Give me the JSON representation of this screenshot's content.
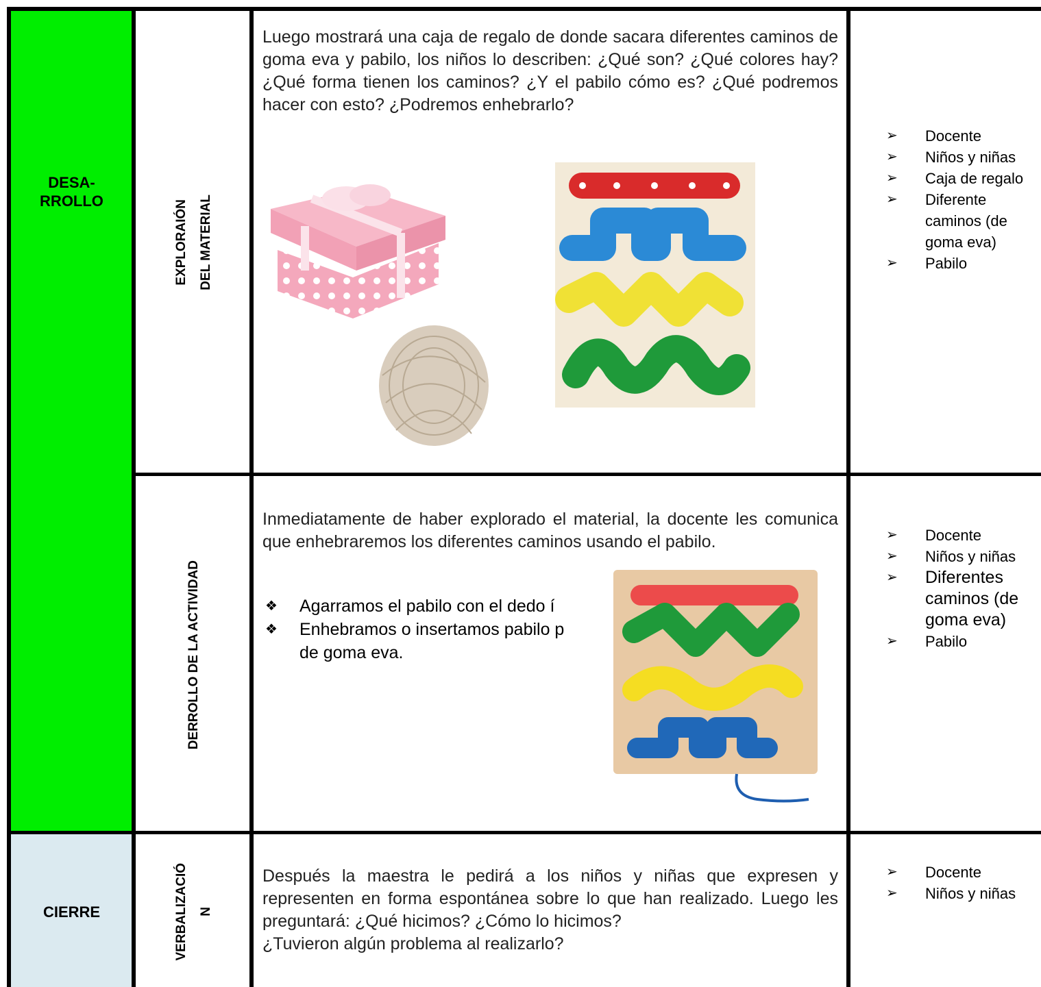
{
  "stages": [
    {
      "lines": [
        "DESA-",
        "RROLLO"
      ]
    },
    {
      "lines": [
        "CIERRE"
      ]
    }
  ],
  "rows": [
    {
      "phase": [
        "EXPLORAIÓN",
        "DEL MATERIAL"
      ],
      "paragraphs": [
        "Luego mostrará una caja de regalo de donde sacara diferentes caminos de goma eva y pabilo, los niños lo describen: ¿Qué son? ¿Qué colores hay? ¿Qué forma tienen los caminos? ¿Y el pabilo cómo es? ¿Qué podremos hacer con esto? ¿Podremos enhebrarlo?"
      ],
      "resources": [
        "Docente",
        "Niños y niñas",
        "Caja de regalo",
        "Diferente caminos (de goma eva)",
        "Pabilo"
      ]
    },
    {
      "phase": [
        "DERROLLO DE LA ACTIVIDAD"
      ],
      "paragraphs": [
        "Inmediatamente de haber explorado el material, la docente les comunica que enhebraremos los diferentes caminos usando el pabilo."
      ],
      "bullets": [
        [
          "Agarramos el pabilo con el dedo í"
        ],
        [
          "Enhebramos o insertamos pabilo p",
          "de goma eva."
        ]
      ],
      "resources": [
        "Docente",
        "Niños y niñas",
        "Diferentes caminos (de goma eva)",
        "Pabilo"
      ]
    },
    {
      "phase": [
        "VERBALIZACIÓ",
        "N"
      ],
      "paragraphs": [
        "Después la maestra le pedirá a los niños y niñas que expresen y representen en forma espontánea sobre lo que han realizado. Luego les preguntará: ¿Qué hicimos? ¿Cómo lo hicimos?",
        "¿Tuvieron algún problema al realizarlo?"
      ],
      "resources": [
        "Docente",
        "Niños y niñas"
      ]
    }
  ]
}
